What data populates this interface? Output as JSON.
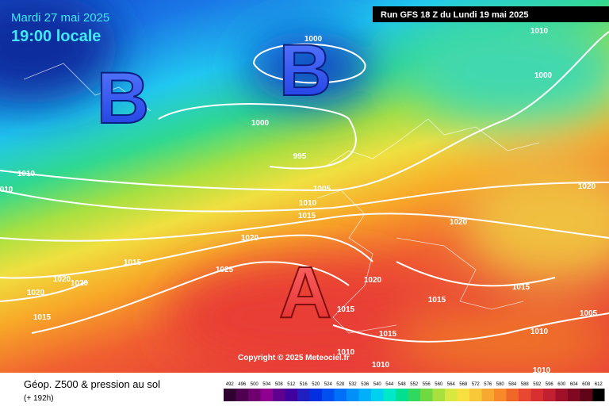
{
  "header": {
    "date": "Mardi 27 mai 2025",
    "time": "19:00 locale",
    "run": "Run GFS 18 Z du Lundi 19 mai 2025"
  },
  "centers": [
    "B",
    "B",
    "A"
  ],
  "isobar_labels": [
    "1000",
    "1010",
    "1000",
    "1000",
    "995",
    "1010",
    "010",
    "1020",
    "1005",
    "1010",
    "1015",
    "1020",
    "1020",
    "1015",
    "1025",
    "1020",
    "1020",
    "1020",
    "1015",
    "1020",
    "1015",
    "1015",
    "1005",
    "1015",
    "1015",
    "1010",
    "1010",
    "1010",
    "1010"
  ],
  "copyright": "Copyright © 2025 Meteociel.fr",
  "footer": {
    "title": "Géop. Z500 & pression au sol",
    "lead": "(+ 192h)"
  },
  "scale": [
    492,
    496,
    500,
    504,
    508,
    512,
    516,
    520,
    524,
    528,
    532,
    536,
    540,
    544,
    548,
    552,
    556,
    560,
    564,
    568,
    572,
    576,
    580,
    584,
    588,
    592,
    596,
    600,
    604,
    608,
    612
  ]
}
